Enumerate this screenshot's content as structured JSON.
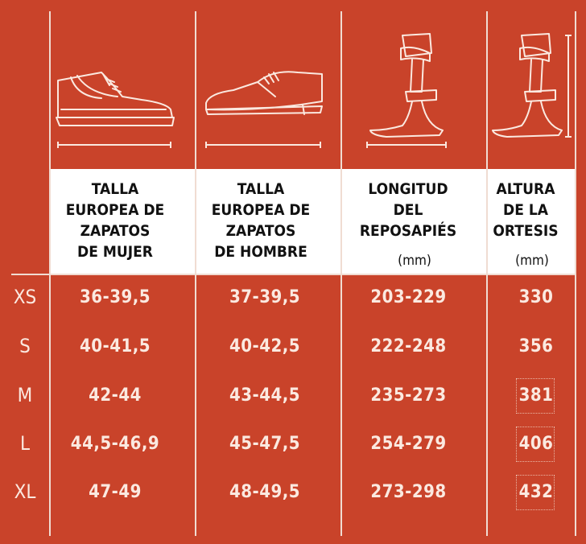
{
  "headers": {
    "women": "TALLA\nEUROPEA DE\nZAPATOS\nDE MUJER",
    "men": "TALLA\nEUROPEA DE\nZAPATOS\nDE HOMBRE",
    "footplate": "LONGITUD\nDEL\nREPOSAPIÉS",
    "footplate_unit": "(mm)",
    "height": "ALTURA\nDE LA\nORTESIS",
    "height_unit": "(mm)"
  },
  "icons": {
    "women": "sneaker-icon",
    "men": "dress-shoe-icon",
    "footplate": "orthosis-footplate-icon",
    "height": "orthosis-height-icon"
  },
  "rows": [
    {
      "size": "XS",
      "women": "36-39,5",
      "men": "37-39,5",
      "footplate": "203-229",
      "height": "330"
    },
    {
      "size": "S",
      "women": "40-41,5",
      "men": "40-42,5",
      "footplate": "222-248",
      "height": "356"
    },
    {
      "size": "M",
      "women": "42-44",
      "men": "43-44,5",
      "footplate": "235-273",
      "height": "381"
    },
    {
      "size": "L",
      "women": "44,5-46,9",
      "men": "45-47,5",
      "footplate": "254-279",
      "height": "406"
    },
    {
      "size": "XL",
      "women": "47-49",
      "men": "48-49,5",
      "footplate": "273-298",
      "height": "432"
    }
  ],
  "colors": {
    "background": "#c9432a",
    "lines": "#f0dcd2",
    "header_bg": "#ffffff",
    "text_light": "#fbe9e0",
    "text_dark": "#111111"
  }
}
